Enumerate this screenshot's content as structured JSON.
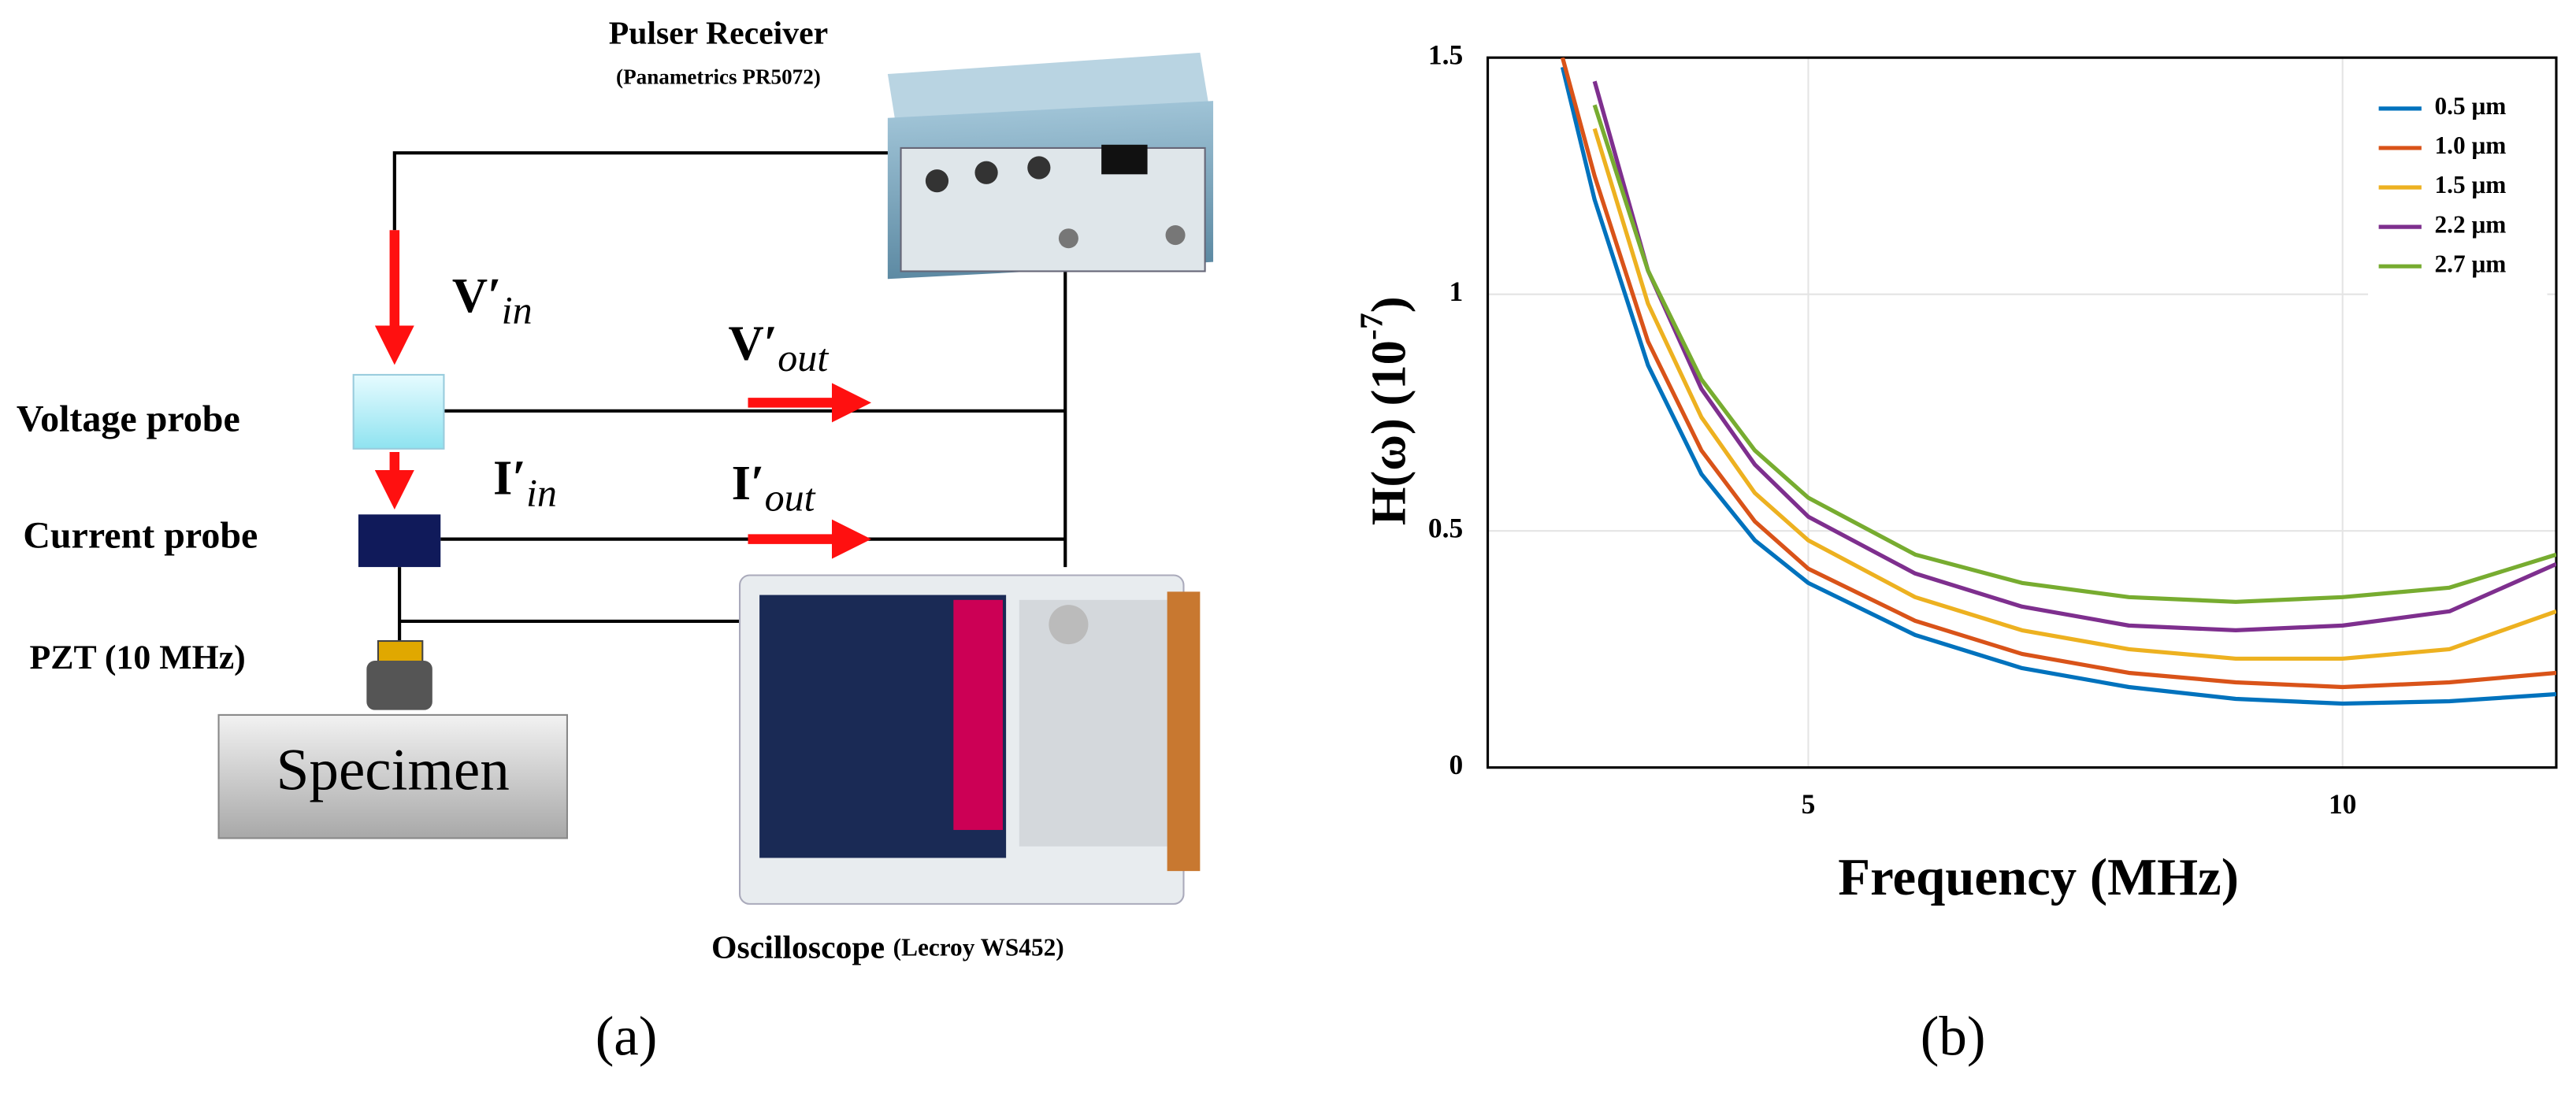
{
  "diagram": {
    "pulser": {
      "name": "Pulser Receiver",
      "model": "(Panametrics PR5072)"
    },
    "signals": [
      {
        "main": "V′",
        "sub": "in"
      },
      {
        "main": "V′",
        "sub": "out"
      },
      {
        "main": "I′",
        "sub": "in"
      },
      {
        "main": "I′",
        "sub": "out"
      }
    ],
    "voltage_probe": "Voltage probe",
    "current_probe": "Current probe",
    "pzt": "PZT (10 MHz)",
    "specimen": "Specimen",
    "oscilloscope": {
      "name": "Oscilloscope",
      "model": "(Lecroy WS452)"
    },
    "panel_label": "(a)"
  },
  "panel_label_b": "(b)",
  "chart_data": {
    "type": "line",
    "xlabel": "Frequency (MHz)",
    "ylabel_parts": [
      "H(ω) (10",
      "-7",
      ")"
    ],
    "x": [
      2.7,
      3,
      3.5,
      4,
      4.5,
      5,
      6,
      7,
      8,
      9,
      10,
      11,
      12
    ],
    "series": [
      {
        "name": "0.5 μm",
        "color": "#0072bd",
        "values": [
          1.48,
          1.2,
          0.85,
          0.62,
          0.48,
          0.39,
          0.28,
          0.21,
          0.17,
          0.145,
          0.135,
          0.14,
          0.155
        ]
      },
      {
        "name": "1.0 μm",
        "color": "#d95319",
        "values": [
          1.5,
          1.25,
          0.9,
          0.67,
          0.52,
          0.42,
          0.31,
          0.24,
          0.2,
          0.18,
          0.17,
          0.18,
          0.2
        ]
      },
      {
        "name": "1.5 μm",
        "color": "#edb120",
        "values": [
          null,
          1.35,
          0.98,
          0.74,
          0.58,
          0.48,
          0.36,
          0.29,
          0.25,
          0.23,
          0.23,
          0.25,
          0.33
        ]
      },
      {
        "name": "2.2 μm",
        "color": "#7e2f8e",
        "values": [
          null,
          1.45,
          1.05,
          0.8,
          0.64,
          0.53,
          0.41,
          0.34,
          0.3,
          0.29,
          0.3,
          0.33,
          0.43
        ]
      },
      {
        "name": "2.7 μm",
        "color": "#77ac30",
        "values": [
          null,
          1.4,
          1.05,
          0.82,
          0.67,
          0.57,
          0.45,
          0.39,
          0.36,
          0.35,
          0.36,
          0.38,
          0.45
        ]
      }
    ],
    "xlim": [
      2,
      12
    ],
    "xticks": [
      5,
      10
    ],
    "ylim": [
      0,
      1.5
    ],
    "yticks": [
      0,
      0.5,
      1,
      1.5
    ],
    "grid": true,
    "legend": "upper right"
  }
}
